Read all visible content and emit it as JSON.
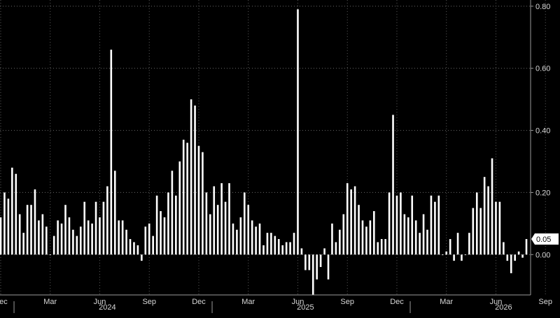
{
  "chart_data": {
    "type": "bar",
    "title": "",
    "xlabel": "",
    "ylabel": "",
    "ylim": [
      -0.13,
      0.82
    ],
    "y_ticks": [
      "0.80",
      "0.60",
      "0.40",
      "0.20",
      "0.00"
    ],
    "y_tick_values": [
      0.8,
      0.6,
      0.4,
      0.2,
      0.0
    ],
    "last_value_label": "0.05",
    "month_labels": [
      "Dec",
      "Mar",
      "Jun",
      "Sep",
      "Dec",
      "Mar",
      "Jun",
      "Sep",
      "Dec",
      "Mar",
      "Jun",
      "Sep"
    ],
    "month_label_bar_index": [
      0,
      13,
      26,
      39,
      52,
      65,
      78,
      91,
      104,
      117,
      130,
      143
    ],
    "year_labels": [
      "2024",
      "2025",
      "2026"
    ],
    "year_label_bar_index": [
      28,
      80,
      132
    ],
    "year_divider_bar_index": [
      4,
      56,
      108
    ],
    "grid": true,
    "bar_color": "#ffffff",
    "values": [
      0.12,
      0.2,
      0.18,
      0.28,
      0.26,
      0.13,
      0.07,
      0.16,
      0.16,
      0.21,
      0.11,
      0.13,
      0.09,
      0.0,
      0.06,
      0.11,
      0.1,
      0.16,
      0.12,
      0.08,
      0.06,
      0.09,
      0.17,
      0.11,
      0.1,
      0.17,
      0.12,
      0.17,
      0.22,
      0.66,
      0.27,
      0.11,
      0.11,
      0.08,
      0.05,
      0.04,
      0.03,
      -0.02,
      0.09,
      0.1,
      0.06,
      0.19,
      0.14,
      0.12,
      0.2,
      0.27,
      0.19,
      0.3,
      0.37,
      0.36,
      0.5,
      0.48,
      0.35,
      0.33,
      0.2,
      0.13,
      0.22,
      0.16,
      0.23,
      0.17,
      0.23,
      0.1,
      0.08,
      0.12,
      0.2,
      0.16,
      0.11,
      0.09,
      0.1,
      0.03,
      0.07,
      0.07,
      0.06,
      0.05,
      0.03,
      0.04,
      0.04,
      0.07,
      0.79,
      0.02,
      -0.05,
      -0.05,
      -0.13,
      -0.08,
      -0.04,
      0.02,
      -0.08,
      0.1,
      0.04,
      0.08,
      0.13,
      0.23,
      0.21,
      0.22,
      0.16,
      0.11,
      0.09,
      0.11,
      0.14,
      0.04,
      0.05,
      0.05,
      0.2,
      0.45,
      0.19,
      0.2,
      0.13,
      0.12,
      0.19,
      0.11,
      0.07,
      0.13,
      0.08,
      0.19,
      0.17,
      0.19,
      0.0,
      0.01,
      0.05,
      -0.02,
      0.07,
      -0.02,
      0.0,
      0.07,
      0.15,
      0.2,
      0.15,
      0.25,
      0.22,
      0.31,
      0.17,
      0.17,
      0.04,
      -0.02,
      -0.06,
      -0.02,
      0.01,
      -0.01,
      0.05
    ]
  }
}
